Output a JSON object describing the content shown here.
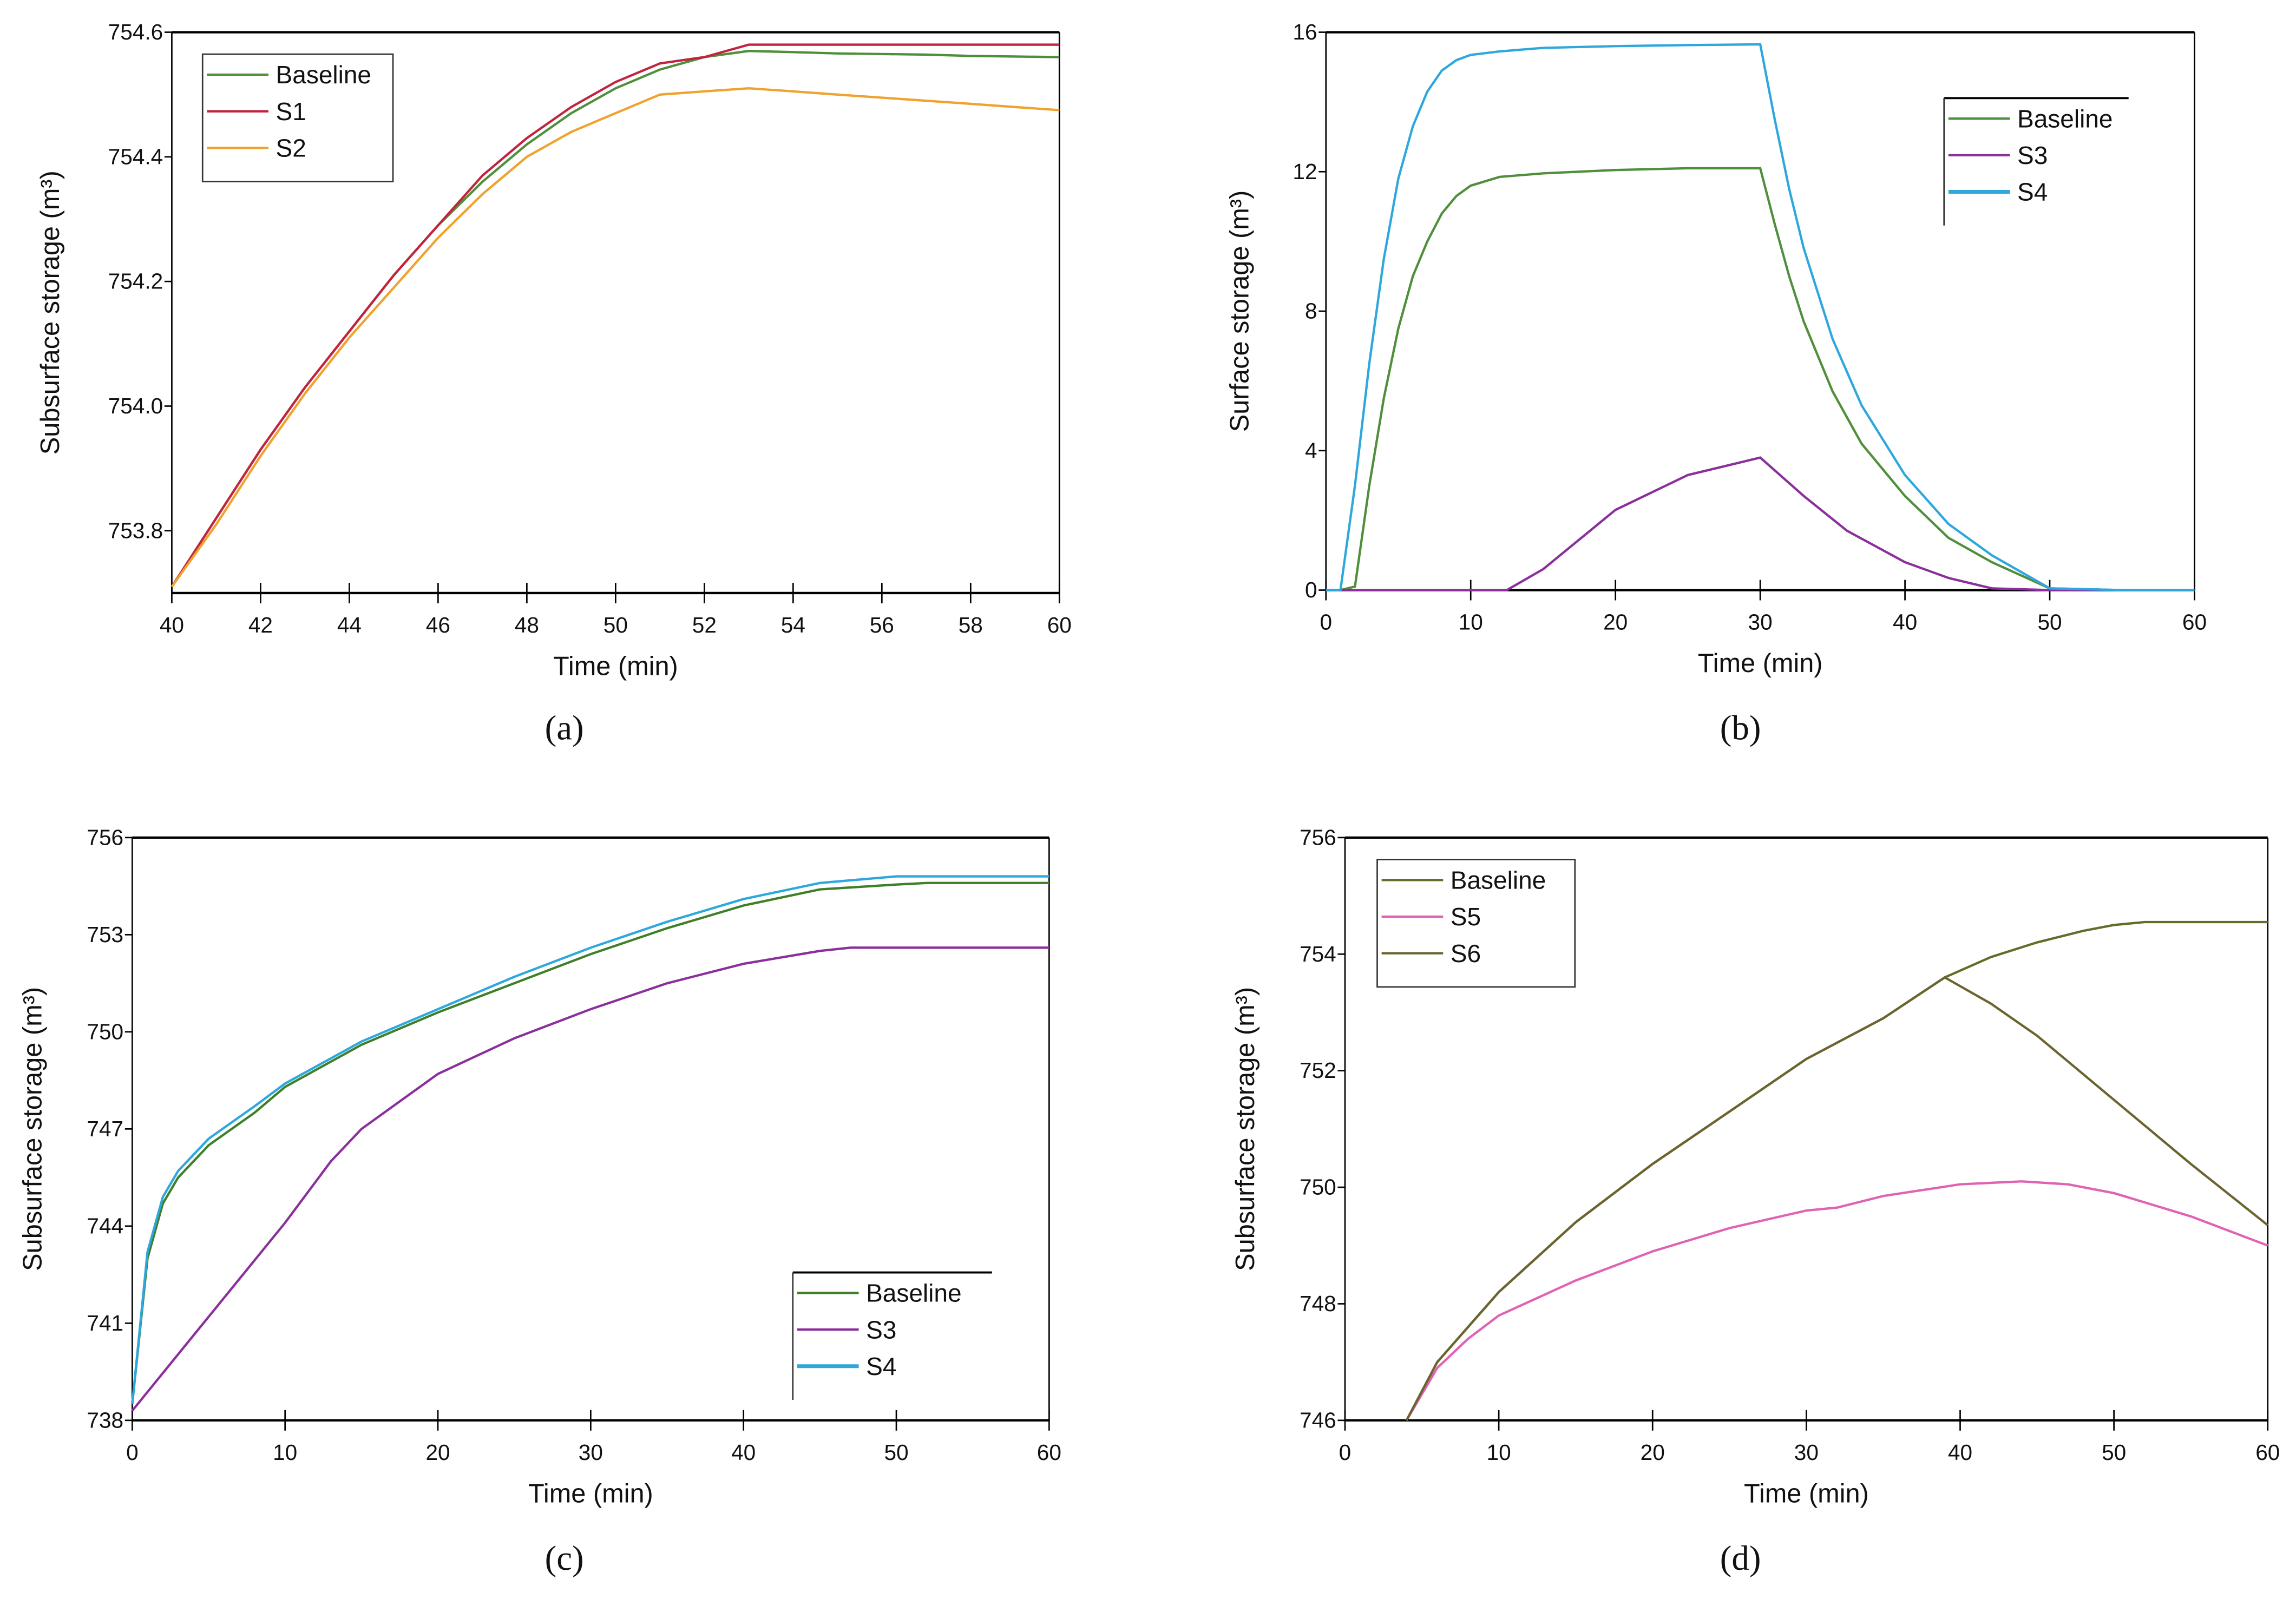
{
  "chart_data": [
    {
      "type": "line",
      "panel": "(a)",
      "panel_letter": "a",
      "xlabel": "Time (min)",
      "ylabel": "Subsurface storage (m³)",
      "xlim": [
        40,
        60
      ],
      "ylim": [
        753.7,
        754.6
      ],
      "xticks": [
        40,
        42,
        44,
        46,
        48,
        50,
        52,
        54,
        56,
        58,
        60
      ],
      "yticks": [
        753.8,
        754.0,
        754.2,
        754.4,
        754.6
      ],
      "ytick_decimals": 1,
      "legend": "top-left",
      "legend_style": "box",
      "series": [
        {
          "name": "Baseline",
          "color": "#4f8f3c",
          "x": [
            40,
            41,
            42,
            43,
            44,
            45,
            46,
            47,
            48,
            49,
            50,
            51,
            52,
            53,
            54,
            55,
            56,
            57,
            58,
            59,
            60
          ],
          "y": [
            753.71,
            753.82,
            753.93,
            754.03,
            754.12,
            754.21,
            754.29,
            754.36,
            754.42,
            754.47,
            754.51,
            754.54,
            754.56,
            754.57,
            754.568,
            754.566,
            754.565,
            754.564,
            754.562,
            754.561,
            754.56
          ]
        },
        {
          "name": "S1",
          "color": "#c2243f",
          "x": [
            40,
            41,
            42,
            43,
            44,
            45,
            46,
            47,
            48,
            49,
            50,
            51,
            52,
            53,
            54,
            60
          ],
          "y": [
            753.71,
            753.82,
            753.93,
            754.03,
            754.12,
            754.21,
            754.29,
            754.37,
            754.43,
            754.48,
            754.52,
            754.55,
            754.56,
            754.58,
            754.58,
            754.58
          ]
        },
        {
          "name": "S2",
          "color": "#f0a22e",
          "x": [
            40,
            41,
            42,
            43,
            44,
            45,
            46,
            47,
            48,
            49,
            50,
            51,
            52,
            53,
            54,
            55,
            56,
            57,
            58,
            59,
            60
          ],
          "y": [
            753.71,
            753.81,
            753.92,
            754.02,
            754.11,
            754.19,
            754.27,
            754.34,
            754.4,
            754.44,
            754.47,
            754.5,
            754.505,
            754.51,
            754.505,
            754.5,
            754.495,
            754.49,
            754.485,
            754.48,
            754.475
          ]
        }
      ]
    },
    {
      "type": "line",
      "panel": "(b)",
      "panel_letter": "b",
      "xlabel": "Time (min)",
      "ylabel": "Surface storage (m³)",
      "xlim": [
        0,
        60
      ],
      "ylim": [
        0,
        16
      ],
      "xticks": [
        0,
        10,
        20,
        30,
        40,
        50,
        60
      ],
      "yticks": [
        0,
        4,
        8,
        12,
        16
      ],
      "ytick_decimals": 0,
      "legend": "top-right",
      "legend_style": "bracket",
      "series": [
        {
          "name": "Baseline",
          "color": "#4f8f3c",
          "x": [
            0,
            1,
            2,
            3,
            4,
            5,
            6,
            7,
            8,
            9,
            10,
            12,
            15,
            20,
            25,
            30,
            31,
            32,
            33,
            35,
            37,
            40,
            43,
            46,
            50,
            55,
            60
          ],
          "y": [
            0,
            0,
            0.1,
            3,
            5.5,
            7.5,
            9,
            10,
            10.8,
            11.3,
            11.6,
            11.85,
            11.95,
            12.05,
            12.1,
            12.1,
            10.5,
            9,
            7.7,
            5.7,
            4.2,
            2.7,
            1.5,
            0.8,
            0.05,
            0,
            0
          ]
        },
        {
          "name": "S3",
          "color": "#8b2f9c",
          "x": [
            0,
            12.5,
            15,
            20,
            25,
            30,
            33,
            36,
            40,
            43,
            46,
            50,
            60
          ],
          "y": [
            0,
            0,
            0.6,
            2.3,
            3.3,
            3.8,
            2.7,
            1.7,
            0.8,
            0.35,
            0.05,
            0,
            0
          ]
        },
        {
          "name": "S4",
          "color": "#2ea7dc",
          "x": [
            0,
            1,
            2,
            3,
            4,
            5,
            6,
            7,
            8,
            9,
            10,
            12,
            15,
            20,
            25,
            30,
            31,
            32,
            33,
            35,
            37,
            40,
            43,
            46,
            50,
            55,
            60
          ],
          "y": [
            0,
            0,
            3,
            6.5,
            9.5,
            11.8,
            13.3,
            14.3,
            14.9,
            15.2,
            15.35,
            15.45,
            15.55,
            15.6,
            15.63,
            15.65,
            13.5,
            11.5,
            9.8,
            7.2,
            5.3,
            3.3,
            1.9,
            1.0,
            0.05,
            0,
            0
          ]
        }
      ]
    },
    {
      "type": "line",
      "panel": "(c)",
      "panel_letter": "c",
      "xlabel": "Time (min)",
      "ylabel": "Subsurface storage (m³)",
      "xlim": [
        0,
        60
      ],
      "ylim": [
        738,
        756
      ],
      "xticks": [
        0,
        10,
        20,
        30,
        40,
        50,
        60
      ],
      "yticks": [
        738,
        741,
        744,
        747,
        750,
        753,
        756
      ],
      "ytick_decimals": 0,
      "legend": "bottom-right",
      "legend_style": "bracket",
      "series": [
        {
          "name": "Baseline",
          "color": "#3f7f2a",
          "x": [
            0,
            1,
            2,
            3,
            5,
            8,
            10,
            15,
            20,
            25,
            30,
            35,
            40,
            45,
            50,
            52,
            60
          ],
          "y": [
            738.5,
            743,
            744.7,
            745.5,
            746.5,
            747.5,
            748.3,
            749.6,
            750.6,
            751.5,
            752.4,
            753.2,
            753.9,
            754.4,
            754.55,
            754.6,
            754.6
          ]
        },
        {
          "name": "S3",
          "color": "#8b2f9c",
          "x": [
            0,
            5,
            10,
            13,
            15,
            20,
            25,
            30,
            35,
            40,
            45,
            47,
            60
          ],
          "y": [
            738.3,
            741.2,
            744.1,
            746,
            747,
            748.7,
            749.8,
            750.7,
            751.5,
            752.1,
            752.5,
            752.6,
            752.6
          ]
        },
        {
          "name": "S4",
          "color": "#2ea7dc",
          "x": [
            0,
            1,
            2,
            3,
            5,
            8,
            10,
            15,
            20,
            25,
            30,
            35,
            40,
            45,
            50,
            52,
            60
          ],
          "y": [
            738.5,
            743.2,
            744.9,
            745.7,
            746.7,
            747.7,
            748.4,
            749.7,
            750.7,
            751.7,
            752.6,
            753.4,
            754.1,
            754.6,
            754.8,
            754.8,
            754.8
          ]
        }
      ]
    },
    {
      "type": "line",
      "panel": "(d)",
      "panel_letter": "d",
      "xlabel": "Time (min)",
      "ylabel": "Subsurface storage (m³)",
      "xlim": [
        0,
        60
      ],
      "ylim": [
        746,
        756
      ],
      "xticks": [
        0,
        10,
        20,
        30,
        40,
        50,
        60
      ],
      "yticks": [
        746,
        748,
        750,
        752,
        754,
        756
      ],
      "ytick_decimals": 0,
      "legend": "top-left",
      "legend_style": "box",
      "series": [
        {
          "name": "Baseline",
          "color": "#5f6f2a",
          "x": [
            4,
            6,
            8,
            10,
            15,
            20,
            25,
            30,
            35,
            39,
            42,
            45,
            48,
            50,
            52,
            55,
            60
          ],
          "y": [
            746,
            747,
            747.6,
            748.2,
            749.4,
            750.4,
            751.3,
            752.2,
            752.9,
            753.6,
            753.95,
            754.2,
            754.4,
            754.5,
            754.55,
            754.55,
            754.55
          ]
        },
        {
          "name": "S5",
          "color": "#e062b4",
          "x": [
            4,
            6,
            8,
            10,
            15,
            20,
            25,
            30,
            32,
            35,
            40,
            44,
            47,
            50,
            55,
            60
          ],
          "y": [
            746,
            746.9,
            747.4,
            747.8,
            748.4,
            748.9,
            749.3,
            749.6,
            749.65,
            749.85,
            750.05,
            750.1,
            750.05,
            749.9,
            749.5,
            749.0
          ]
        },
        {
          "name": "S6",
          "color": "#6b6430",
          "x": [
            4,
            6,
            8,
            10,
            15,
            20,
            25,
            30,
            35,
            39,
            42,
            45,
            50,
            55,
            60
          ],
          "y": [
            746,
            747,
            747.6,
            748.2,
            749.4,
            750.4,
            751.3,
            752.2,
            752.9,
            753.6,
            753.15,
            752.6,
            751.5,
            750.4,
            749.35
          ]
        }
      ]
    }
  ]
}
